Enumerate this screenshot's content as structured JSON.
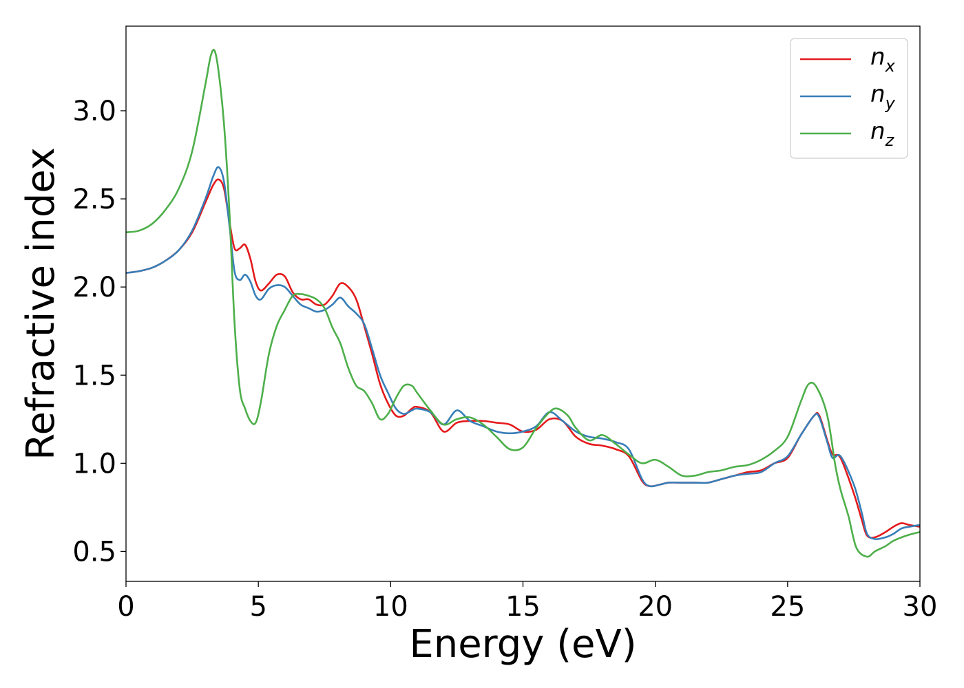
{
  "chart_data": {
    "type": "line",
    "title": "",
    "xlabel": "Energy (eV)",
    "ylabel": "Refractive index",
    "xlim": [
      0,
      30
    ],
    "ylim": [
      0.33,
      3.48
    ],
    "xticks": [
      0,
      5,
      10,
      15,
      20,
      25,
      30
    ],
    "yticks": [
      0.5,
      1.0,
      1.5,
      2.0,
      2.5,
      3.0
    ],
    "xtick_labels": [
      "0",
      "5",
      "10",
      "15",
      "20",
      "25",
      "30"
    ],
    "ytick_labels": [
      "0.5",
      "1.0",
      "1.5",
      "2.0",
      "2.5",
      "3.0"
    ],
    "grid": false,
    "legend_position": "top-right",
    "series": [
      {
        "name_main": "n",
        "name_sub": "x",
        "color": "#e41a1c",
        "points": [
          [
            0,
            2.08
          ],
          [
            0.5,
            2.09
          ],
          [
            1,
            2.11
          ],
          [
            1.5,
            2.15
          ],
          [
            2,
            2.21
          ],
          [
            2.5,
            2.31
          ],
          [
            3,
            2.48
          ],
          [
            3.3,
            2.58
          ],
          [
            3.5,
            2.61
          ],
          [
            3.7,
            2.56
          ],
          [
            3.9,
            2.38
          ],
          [
            4.1,
            2.22
          ],
          [
            4.3,
            2.22
          ],
          [
            4.5,
            2.24
          ],
          [
            4.7,
            2.16
          ],
          [
            4.9,
            2.03
          ],
          [
            5.1,
            1.98
          ],
          [
            5.4,
            2.02
          ],
          [
            5.7,
            2.07
          ],
          [
            6,
            2.06
          ],
          [
            6.3,
            1.97
          ],
          [
            6.6,
            1.93
          ],
          [
            6.9,
            1.93
          ],
          [
            7.2,
            1.9
          ],
          [
            7.5,
            1.9
          ],
          [
            7.8,
            1.95
          ],
          [
            8.1,
            2.02
          ],
          [
            8.4,
            2.0
          ],
          [
            8.7,
            1.93
          ],
          [
            9,
            1.78
          ],
          [
            9.3,
            1.62
          ],
          [
            9.6,
            1.45
          ],
          [
            9.9,
            1.34
          ],
          [
            10.2,
            1.27
          ],
          [
            10.5,
            1.27
          ],
          [
            10.8,
            1.31
          ],
          [
            11,
            1.32
          ],
          [
            11.5,
            1.29
          ],
          [
            12,
            1.18
          ],
          [
            12.5,
            1.23
          ],
          [
            13,
            1.24
          ],
          [
            13.5,
            1.24
          ],
          [
            14,
            1.23
          ],
          [
            14.5,
            1.22
          ],
          [
            15,
            1.18
          ],
          [
            15.5,
            1.19
          ],
          [
            16,
            1.25
          ],
          [
            16.5,
            1.24
          ],
          [
            17,
            1.15
          ],
          [
            17.5,
            1.11
          ],
          [
            18,
            1.1
          ],
          [
            18.5,
            1.08
          ],
          [
            19,
            1.04
          ],
          [
            19.5,
            0.9
          ],
          [
            19.8,
            0.87
          ],
          [
            20.2,
            0.88
          ],
          [
            20.5,
            0.89
          ],
          [
            21,
            0.89
          ],
          [
            21.5,
            0.89
          ],
          [
            22,
            0.89
          ],
          [
            22.5,
            0.91
          ],
          [
            23,
            0.93
          ],
          [
            23.5,
            0.95
          ],
          [
            24,
            0.96
          ],
          [
            24.5,
            1.0
          ],
          [
            25,
            1.03
          ],
          [
            25.5,
            1.16
          ],
          [
            26,
            1.27
          ],
          [
            26.2,
            1.27
          ],
          [
            26.5,
            1.13
          ],
          [
            26.7,
            1.05
          ],
          [
            27,
            1.03
          ],
          [
            27.5,
            0.83
          ],
          [
            27.8,
            0.68
          ],
          [
            28,
            0.59
          ],
          [
            28.3,
            0.58
          ],
          [
            28.7,
            0.61
          ],
          [
            29,
            0.64
          ],
          [
            29.3,
            0.66
          ],
          [
            29.6,
            0.65
          ],
          [
            30,
            0.64
          ]
        ]
      },
      {
        "name_main": "n",
        "name_sub": "y",
        "color": "#377eb8",
        "points": [
          [
            0,
            2.08
          ],
          [
            0.5,
            2.09
          ],
          [
            1,
            2.11
          ],
          [
            1.5,
            2.15
          ],
          [
            2,
            2.21
          ],
          [
            2.5,
            2.32
          ],
          [
            3,
            2.5
          ],
          [
            3.3,
            2.63
          ],
          [
            3.5,
            2.68
          ],
          [
            3.7,
            2.6
          ],
          [
            3.9,
            2.36
          ],
          [
            4.1,
            2.09
          ],
          [
            4.3,
            2.04
          ],
          [
            4.5,
            2.07
          ],
          [
            4.7,
            2.03
          ],
          [
            4.9,
            1.95
          ],
          [
            5.1,
            1.93
          ],
          [
            5.4,
            1.99
          ],
          [
            5.7,
            2.01
          ],
          [
            6,
            2.0
          ],
          [
            6.3,
            1.95
          ],
          [
            6.6,
            1.9
          ],
          [
            6.9,
            1.88
          ],
          [
            7.2,
            1.86
          ],
          [
            7.5,
            1.87
          ],
          [
            7.8,
            1.9
          ],
          [
            8.1,
            1.94
          ],
          [
            8.4,
            1.89
          ],
          [
            8.7,
            1.85
          ],
          [
            9,
            1.79
          ],
          [
            9.3,
            1.65
          ],
          [
            9.6,
            1.5
          ],
          [
            9.9,
            1.4
          ],
          [
            10.2,
            1.31
          ],
          [
            10.5,
            1.28
          ],
          [
            10.8,
            1.3
          ],
          [
            11,
            1.31
          ],
          [
            11.5,
            1.29
          ],
          [
            12,
            1.22
          ],
          [
            12.5,
            1.3
          ],
          [
            13,
            1.24
          ],
          [
            13.5,
            1.21
          ],
          [
            14,
            1.18
          ],
          [
            14.5,
            1.17
          ],
          [
            15,
            1.18
          ],
          [
            15.5,
            1.21
          ],
          [
            16,
            1.29
          ],
          [
            16.5,
            1.24
          ],
          [
            17,
            1.18
          ],
          [
            17.5,
            1.15
          ],
          [
            18,
            1.14
          ],
          [
            18.5,
            1.12
          ],
          [
            19,
            1.08
          ],
          [
            19.5,
            0.91
          ],
          [
            19.8,
            0.87
          ],
          [
            20.2,
            0.88
          ],
          [
            20.5,
            0.89
          ],
          [
            21,
            0.89
          ],
          [
            21.5,
            0.89
          ],
          [
            22,
            0.89
          ],
          [
            22.5,
            0.91
          ],
          [
            23,
            0.93
          ],
          [
            23.5,
            0.94
          ],
          [
            24,
            0.95
          ],
          [
            24.5,
            1.0
          ],
          [
            25,
            1.04
          ],
          [
            25.5,
            1.16
          ],
          [
            26,
            1.27
          ],
          [
            26.2,
            1.26
          ],
          [
            26.5,
            1.12
          ],
          [
            26.7,
            1.03
          ],
          [
            27,
            1.04
          ],
          [
            27.5,
            0.88
          ],
          [
            27.8,
            0.72
          ],
          [
            28,
            0.6
          ],
          [
            28.3,
            0.57
          ],
          [
            28.7,
            0.58
          ],
          [
            29,
            0.6
          ],
          [
            29.3,
            0.63
          ],
          [
            29.6,
            0.64
          ],
          [
            30,
            0.65
          ]
        ]
      },
      {
        "name_main": "n",
        "name_sub": "z",
        "color": "#4daf4a",
        "points": [
          [
            0,
            2.31
          ],
          [
            0.5,
            2.32
          ],
          [
            1,
            2.36
          ],
          [
            1.5,
            2.44
          ],
          [
            2,
            2.56
          ],
          [
            2.5,
            2.77
          ],
          [
            3,
            3.15
          ],
          [
            3.2,
            3.31
          ],
          [
            3.35,
            3.34
          ],
          [
            3.5,
            3.22
          ],
          [
            3.7,
            2.93
          ],
          [
            3.9,
            2.45
          ],
          [
            4.1,
            1.8
          ],
          [
            4.3,
            1.42
          ],
          [
            4.5,
            1.31
          ],
          [
            4.7,
            1.24
          ],
          [
            4.9,
            1.23
          ],
          [
            5.1,
            1.35
          ],
          [
            5.4,
            1.62
          ],
          [
            5.7,
            1.78
          ],
          [
            6,
            1.87
          ],
          [
            6.3,
            1.95
          ],
          [
            6.6,
            1.96
          ],
          [
            6.9,
            1.95
          ],
          [
            7.2,
            1.93
          ],
          [
            7.5,
            1.88
          ],
          [
            7.8,
            1.77
          ],
          [
            8.1,
            1.68
          ],
          [
            8.4,
            1.54
          ],
          [
            8.7,
            1.44
          ],
          [
            9,
            1.41
          ],
          [
            9.3,
            1.34
          ],
          [
            9.6,
            1.25
          ],
          [
            9.9,
            1.28
          ],
          [
            10.2,
            1.37
          ],
          [
            10.5,
            1.44
          ],
          [
            10.8,
            1.44
          ],
          [
            11,
            1.4
          ],
          [
            11.5,
            1.3
          ],
          [
            12,
            1.22
          ],
          [
            12.5,
            1.25
          ],
          [
            13,
            1.26
          ],
          [
            13.5,
            1.22
          ],
          [
            14,
            1.15
          ],
          [
            14.5,
            1.08
          ],
          [
            15,
            1.09
          ],
          [
            15.5,
            1.2
          ],
          [
            16,
            1.29
          ],
          [
            16.3,
            1.31
          ],
          [
            16.7,
            1.27
          ],
          [
            17,
            1.2
          ],
          [
            17.5,
            1.13
          ],
          [
            18,
            1.16
          ],
          [
            18.5,
            1.11
          ],
          [
            19,
            1.05
          ],
          [
            19.5,
            1.0
          ],
          [
            20,
            1.02
          ],
          [
            20.5,
            0.98
          ],
          [
            21,
            0.93
          ],
          [
            21.5,
            0.93
          ],
          [
            22,
            0.95
          ],
          [
            22.5,
            0.96
          ],
          [
            23,
            0.98
          ],
          [
            23.5,
            0.99
          ],
          [
            24,
            1.02
          ],
          [
            24.5,
            1.07
          ],
          [
            25,
            1.15
          ],
          [
            25.5,
            1.35
          ],
          [
            25.8,
            1.45
          ],
          [
            26.1,
            1.43
          ],
          [
            26.5,
            1.27
          ],
          [
            26.8,
            0.99
          ],
          [
            27,
            0.85
          ],
          [
            27.3,
            0.7
          ],
          [
            27.6,
            0.52
          ],
          [
            28,
            0.47
          ],
          [
            28.3,
            0.5
          ],
          [
            28.7,
            0.53
          ],
          [
            29,
            0.56
          ],
          [
            29.5,
            0.59
          ],
          [
            30,
            0.61
          ]
        ]
      }
    ]
  }
}
